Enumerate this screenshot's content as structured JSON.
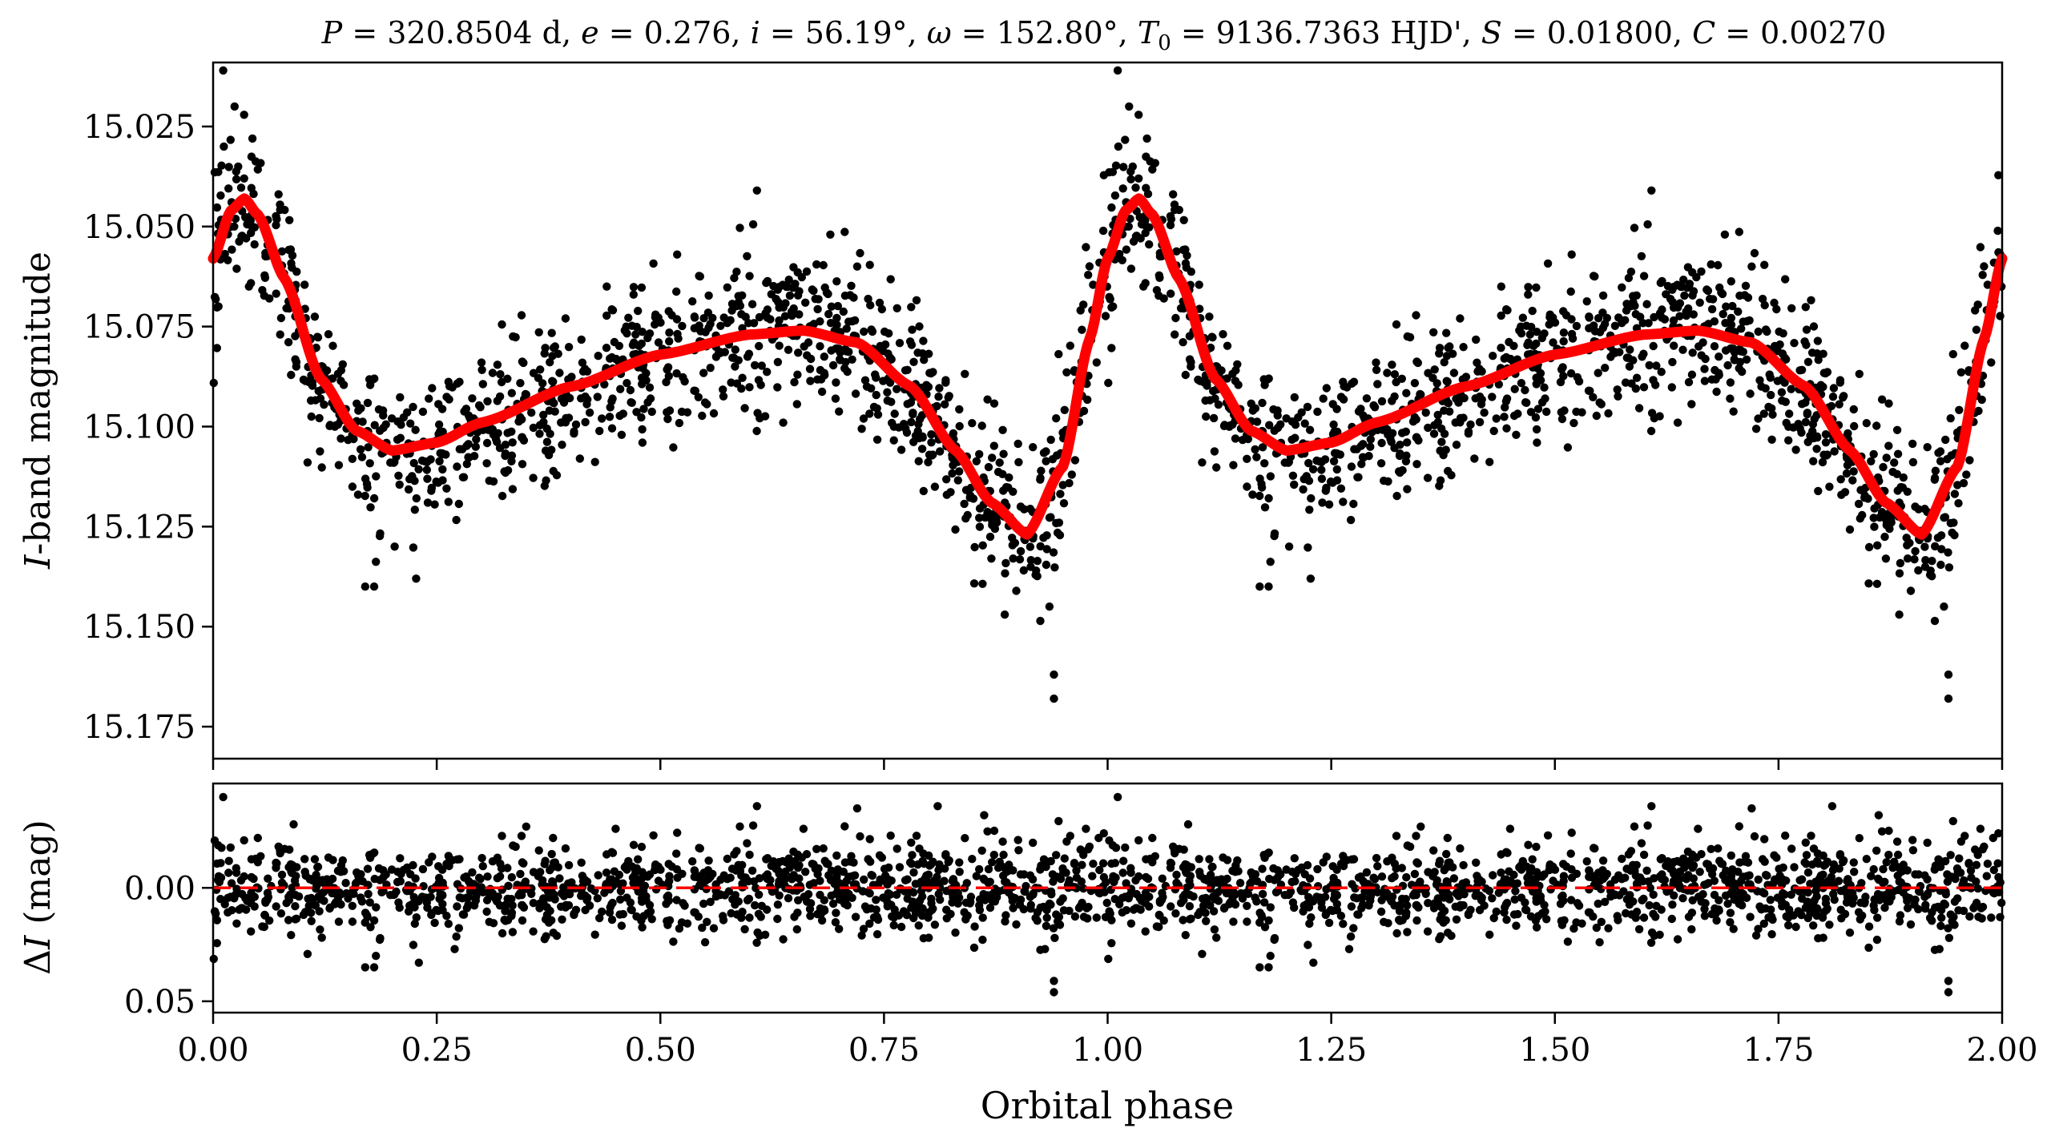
{
  "figure": {
    "title": "P = 320.8504 d, e = 0.276, i = 56.19°, ω = 152.80°, T0 = 9136.7363 HJD', S = 0.01800, C = 0.00270",
    "title_parts": {
      "P_sym": "P",
      "P_val": " = 320.8504 d, ",
      "e_sym": "e",
      "e_val": " = 0.276, ",
      "i_sym": "i",
      "i_val": " = 56.19°, ",
      "w_sym": "ω",
      "w_val": " = 152.80°, ",
      "T_sym": "T",
      "T_sub": "0",
      "T_val": " = 9136.7363 HJD', ",
      "S_sym": "S",
      "S_val": " = 0.01800, ",
      "C_sym": "C",
      "C_val": " = 0.00270"
    }
  },
  "chart_data": [
    {
      "type": "scatter",
      "panel": "top",
      "ylabel": "I-band magnitude",
      "ylabel_parts": {
        "sym": "I",
        "rest": "-band magnitude"
      },
      "xlim": [
        0.0,
        2.0
      ],
      "ylim": [
        15.183,
        15.009
      ],
      "y_inverted": true,
      "yticks": [
        15.025,
        15.05,
        15.075,
        15.1,
        15.125,
        15.15,
        15.175
      ],
      "ytick_labels": [
        "15.025",
        "15.050",
        "15.075",
        "15.100",
        "15.125",
        "15.150",
        "15.175"
      ],
      "xticks": [
        0,
        0.25,
        0.5,
        0.75,
        1.0,
        1.25,
        1.5,
        1.75,
        2.0
      ],
      "series": [
        {
          "kind": "points",
          "color": "#000000"
        },
        {
          "kind": "model_line",
          "color": "#ff0000"
        }
      ],
      "model_nodes": {
        "phase": [
          0.0,
          0.02,
          0.035,
          0.05,
          0.08,
          0.12,
          0.16,
          0.2,
          0.25,
          0.3,
          0.4,
          0.5,
          0.6,
          0.66,
          0.72,
          0.78,
          0.83,
          0.87,
          0.91,
          0.95,
          0.98,
          1.0
        ],
        "mag": [
          15.058,
          15.046,
          15.043,
          15.047,
          15.063,
          15.088,
          15.101,
          15.106,
          15.104,
          15.099,
          15.09,
          15.082,
          15.077,
          15.076,
          15.079,
          15.09,
          15.106,
          15.119,
          15.127,
          15.11,
          15.078,
          15.058
        ]
      },
      "points": [
        [
          0.012,
          15.03
        ],
        [
          0.024,
          15.02
        ],
        [
          0.028,
          15.035
        ],
        [
          0.044,
          15.028
        ],
        [
          0.006,
          15.07
        ],
        [
          0.04,
          15.065
        ],
        [
          0.075,
          15.077
        ],
        [
          0.093,
          15.085
        ],
        [
          0.17,
          15.14
        ],
        [
          0.18,
          15.14
        ],
        [
          0.203,
          15.13
        ],
        [
          0.227,
          15.138
        ],
        [
          0.162,
          15.117
        ],
        [
          0.19,
          15.096
        ],
        [
          0.24,
          15.119
        ],
        [
          0.26,
          15.107
        ],
        [
          0.3,
          15.084
        ],
        [
          0.35,
          15.092
        ],
        [
          0.38,
          15.094
        ],
        [
          0.41,
          15.108
        ],
        [
          0.44,
          15.065
        ],
        [
          0.47,
          15.067
        ],
        [
          0.48,
          15.104
        ],
        [
          0.52,
          15.078
        ],
        [
          0.55,
          15.094
        ],
        [
          0.58,
          15.071
        ],
        [
          0.608,
          15.041
        ],
        [
          0.65,
          15.065
        ],
        [
          0.69,
          15.052
        ],
        [
          0.72,
          15.06
        ],
        [
          0.74,
          15.087
        ],
        [
          0.78,
          15.094
        ],
        [
          0.81,
          15.102
        ],
        [
          0.85,
          15.118
        ],
        [
          0.87,
          15.133
        ],
        [
          0.885,
          15.147
        ],
        [
          0.92,
          15.136
        ],
        [
          0.935,
          15.145
        ],
        [
          0.94,
          15.162
        ],
        [
          0.94,
          15.168
        ],
        [
          0.96,
          15.112
        ],
        [
          0.975,
          15.088
        ],
        [
          0.99,
          15.07
        ],
        [
          0.995,
          15.063
        ]
      ]
    },
    {
      "type": "scatter",
      "panel": "bottom",
      "ylabel": "ΔI (mag)",
      "ylabel_parts": {
        "delta": "Δ",
        "sym": "I",
        "rest": " (mag)"
      },
      "xlabel": "Orbital phase",
      "xlim": [
        0.0,
        2.0
      ],
      "ylim": [
        0.055,
        -0.046
      ],
      "y_inverted": true,
      "yticks": [
        0.0,
        0.05
      ],
      "ytick_labels": [
        "0.00",
        "0.05"
      ],
      "xticks": [
        0,
        0.25,
        0.5,
        0.75,
        1.0,
        1.25,
        1.5,
        1.75,
        2.0
      ],
      "xtick_labels": [
        "0.00",
        "0.25",
        "0.50",
        "0.75",
        "1.00",
        "1.25",
        "1.50",
        "1.75",
        "2.00"
      ],
      "series": [
        {
          "kind": "points",
          "color": "#000000"
        },
        {
          "kind": "zero_line",
          "color": "#ff0000",
          "dashed": true,
          "value": 0.0
        }
      ],
      "points": [
        [
          0.608,
          -0.036
        ],
        [
          0.81,
          -0.036
        ],
        [
          0.862,
          -0.032
        ],
        [
          0.94,
          0.041
        ],
        [
          0.94,
          0.046
        ],
        [
          0.17,
          0.035
        ],
        [
          0.18,
          0.035
        ],
        [
          0.23,
          0.033
        ],
        [
          0.09,
          -0.028
        ],
        [
          0.05,
          -0.022
        ],
        [
          0.35,
          -0.027
        ],
        [
          0.45,
          -0.026
        ],
        [
          0.72,
          -0.035
        ],
        [
          0.99,
          -0.022
        ],
        [
          0.27,
          0.027
        ],
        [
          0.55,
          0.024
        ],
        [
          0.8,
          0.022
        ],
        [
          0.93,
          0.027
        ],
        [
          0.38,
          -0.022
        ],
        [
          0.66,
          -0.026
        ]
      ]
    }
  ]
}
